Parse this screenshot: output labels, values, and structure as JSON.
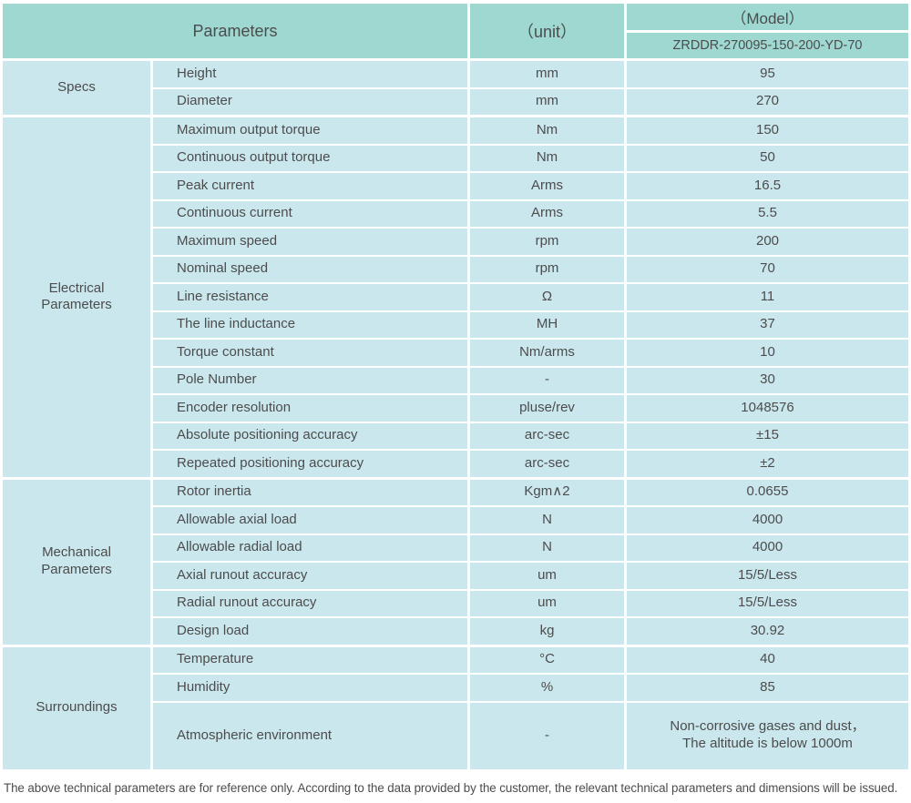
{
  "header": {
    "parameters_label": "Parameters",
    "unit_label": "（unit）",
    "model_label": "（Model）",
    "model_value": "ZRDDR-270095-150-200-YD-70"
  },
  "sections": [
    {
      "label": "Specs",
      "rows": [
        [
          "Height",
          "mm",
          "95"
        ],
        [
          "Diameter",
          "mm",
          "270"
        ]
      ]
    },
    {
      "label": "Electrical\nParameters",
      "rows": [
        [
          "Maximum output torque",
          "Nm",
          "150"
        ],
        [
          "Continuous output torque",
          "Nm",
          "50"
        ],
        [
          "Peak current",
          "Arms",
          "16.5"
        ],
        [
          "Continuous current",
          "Arms",
          "5.5"
        ],
        [
          "Maximum speed",
          "rpm",
          "200"
        ],
        [
          "Nominal speed",
          "rpm",
          "70"
        ],
        [
          "Line resistance",
          "Ω",
          "11"
        ],
        [
          "The line inductance",
          "MH",
          "37"
        ],
        [
          "Torque constant",
          "Nm/arms",
          "10"
        ],
        [
          "Pole Number",
          "-",
          "30"
        ],
        [
          "Encoder resolution",
          "pluse/rev",
          "1048576"
        ],
        [
          "Absolute positioning accuracy",
          "arc-sec",
          "±15"
        ],
        [
          "Repeated positioning accuracy",
          "arc-sec",
          "±2"
        ]
      ]
    },
    {
      "label": "Mechanical\nParameters",
      "rows": [
        [
          "Rotor inertia",
          "Kgm∧2",
          "0.0655"
        ],
        [
          "Allowable axial load",
          "N",
          "4000"
        ],
        [
          "Allowable radial load",
          "N",
          "4000"
        ],
        [
          "Axial runout accuracy",
          "um",
          "15/5/Less"
        ],
        [
          "Radial runout accuracy",
          "um",
          "15/5/Less"
        ],
        [
          "Design load",
          "kg",
          "30.92"
        ]
      ]
    },
    {
      "label": "Surroundings",
      "rows": [
        [
          "Temperature",
          "°C",
          "40"
        ],
        [
          "Humidity",
          "%",
          "85"
        ],
        [
          "Atmospheric environment",
          "-",
          "Non-corrosive gases and dust，\nThe altitude is below 1000m"
        ]
      ]
    }
  ],
  "footer_note": "The above technical parameters are for reference only. According to the data provided by the customer, the relevant technical parameters and dimensions will be issued.",
  "colors": {
    "header_bg": "#9ed8d1",
    "row_bg": "#cbe7ee",
    "border": "#ffffff",
    "text": "#4c4c4c"
  }
}
